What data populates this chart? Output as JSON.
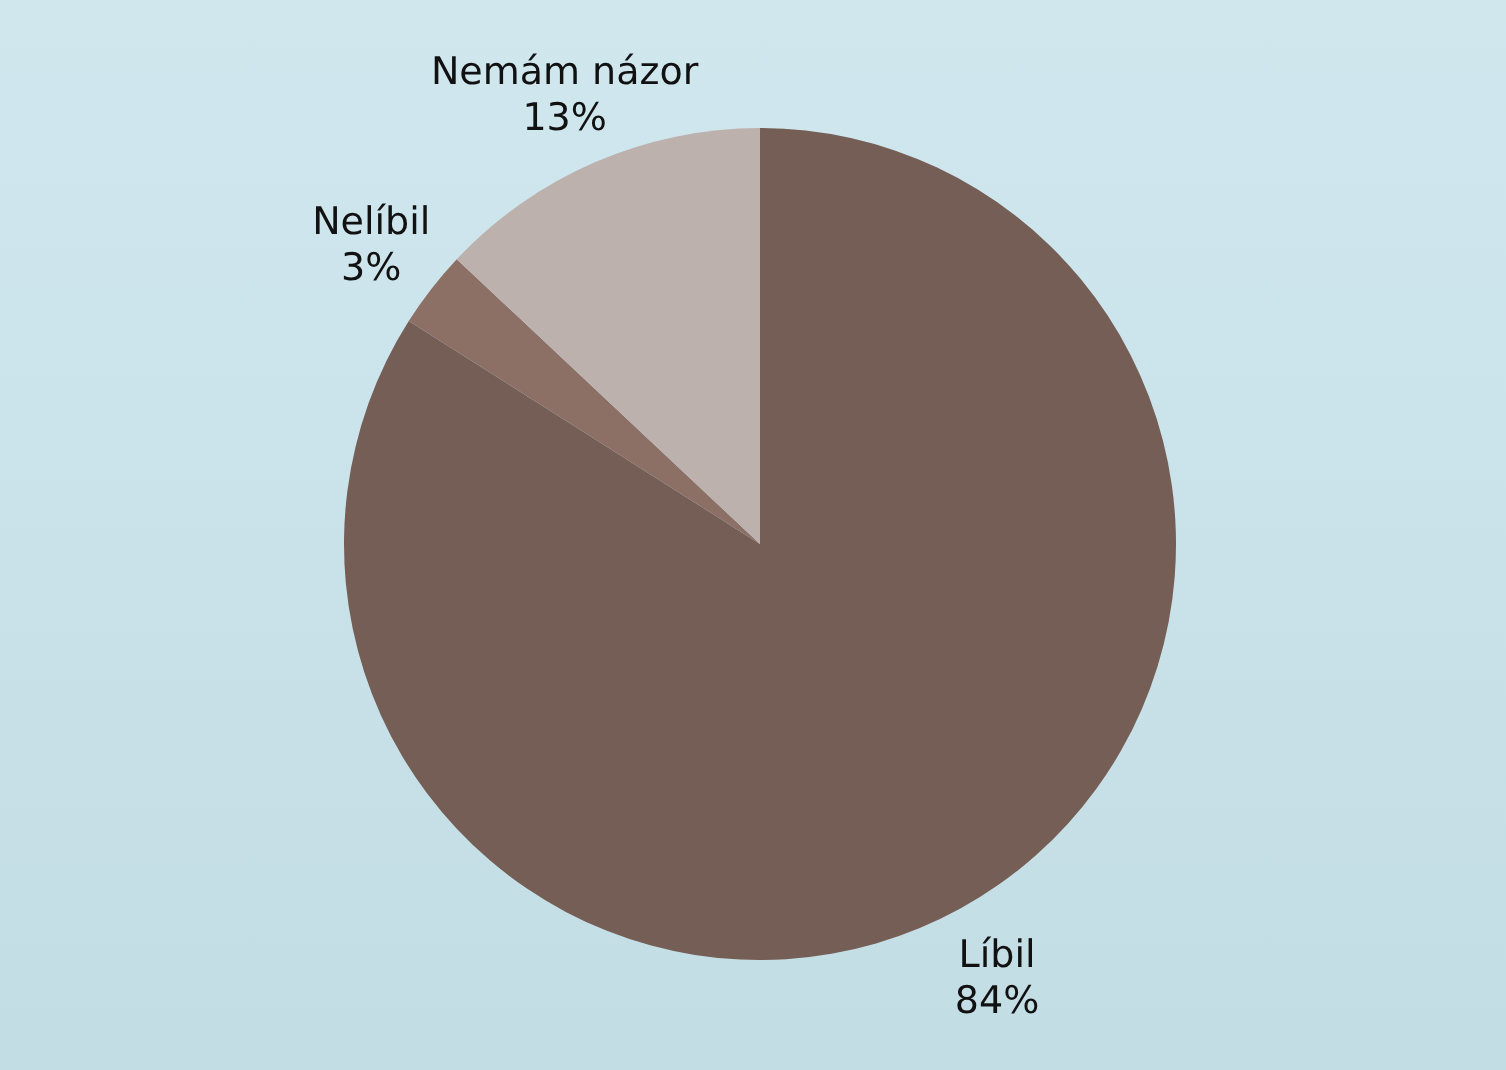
{
  "chart_data": {
    "type": "pie",
    "categories": [
      "Líbil",
      "Nelíbil",
      "Nemám názor"
    ],
    "values": [
      84,
      3,
      13
    ],
    "colors": [
      "#745e55",
      "#8c6f65",
      "#bdb1ae"
    ],
    "value_labels": [
      "84%",
      "3%",
      "13%"
    ]
  }
}
